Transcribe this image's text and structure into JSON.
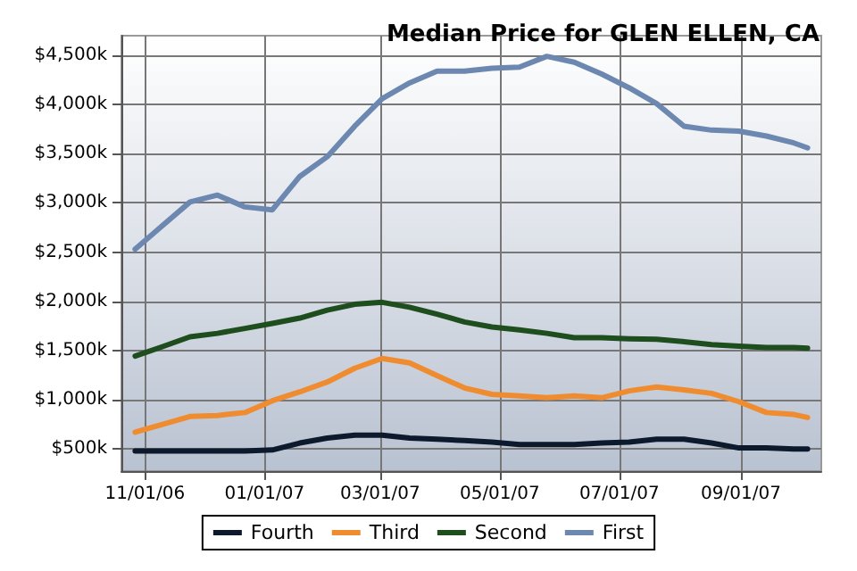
{
  "chart_data": {
    "type": "line",
    "title": "Median Price for GLEN ELLEN, CA",
    "x": [
      "2006-10-27",
      "2006-11-10",
      "2006-11-24",
      "2006-12-08",
      "2006-12-22",
      "2007-01-05",
      "2007-01-19",
      "2007-02-02",
      "2007-02-16",
      "2007-03-02",
      "2007-03-16",
      "2007-03-30",
      "2007-04-13",
      "2007-04-27",
      "2007-05-11",
      "2007-05-25",
      "2007-06-08",
      "2007-06-22",
      "2007-07-06",
      "2007-07-20",
      "2007-08-03",
      "2007-08-17",
      "2007-08-31",
      "2007-09-14",
      "2007-09-28",
      "2007-10-05"
    ],
    "series": [
      {
        "name": "Fourth",
        "color": "#0d1a2e",
        "values": [
          480,
          480,
          480,
          480,
          480,
          490,
          560,
          610,
          640,
          640,
          610,
          600,
          585,
          570,
          545,
          545,
          545,
          560,
          570,
          600,
          600,
          560,
          510,
          510,
          500,
          500
        ]
      },
      {
        "name": "Third",
        "color": "#f08c30",
        "values": [
          670,
          750,
          830,
          840,
          870,
          990,
          1080,
          1180,
          1320,
          1420,
          1375,
          1245,
          1120,
          1055,
          1040,
          1020,
          1040,
          1020,
          1090,
          1130,
          1100,
          1065,
          980,
          870,
          850,
          820
        ]
      },
      {
        "name": "Second",
        "color": "#1e4d1e",
        "values": [
          1444,
          1540,
          1640,
          1675,
          1725,
          1775,
          1830,
          1910,
          1970,
          1990,
          1940,
          1870,
          1790,
          1740,
          1710,
          1675,
          1630,
          1630,
          1620,
          1615,
          1590,
          1560,
          1545,
          1530,
          1530,
          1525
        ]
      },
      {
        "name": "First",
        "color": "#6c87b0",
        "values": [
          2530,
          2770,
          3010,
          3080,
          2960,
          2930,
          3270,
          3470,
          3780,
          4060,
          4220,
          4340,
          4340,
          4370,
          4380,
          4490,
          4430,
          4310,
          4170,
          4010,
          3780,
          3740,
          3730,
          3680,
          3610,
          3560
        ]
      }
    ],
    "xlim": [
      "2006-10-20",
      "2007-10-12"
    ],
    "xticks": [
      {
        "value": "2006-11-01",
        "label": "11/01/06"
      },
      {
        "value": "2007-01-01",
        "label": "01/01/07"
      },
      {
        "value": "2007-03-01",
        "label": "03/01/07"
      },
      {
        "value": "2007-05-01",
        "label": "05/01/07"
      },
      {
        "value": "2007-07-01",
        "label": "07/01/07"
      },
      {
        "value": "2007-09-01",
        "label": "09/01/07"
      }
    ],
    "ylim": [
      275,
      4700
    ],
    "yticks": [
      {
        "value": 500,
        "label": "$500k"
      },
      {
        "value": 1000,
        "label": "$1,000k"
      },
      {
        "value": 1500,
        "label": "$1,500k"
      },
      {
        "value": 2000,
        "label": "$2,000k"
      },
      {
        "value": 2500,
        "label": "$2,500k"
      },
      {
        "value": 3000,
        "label": "$3,000k"
      },
      {
        "value": 3500,
        "label": "$3,500k"
      },
      {
        "value": 4000,
        "label": "$4,000k"
      },
      {
        "value": 4500,
        "label": "$4,500k"
      }
    ],
    "grid": true,
    "legend": "bottom",
    "marker": "none",
    "line_style": "solid"
  }
}
